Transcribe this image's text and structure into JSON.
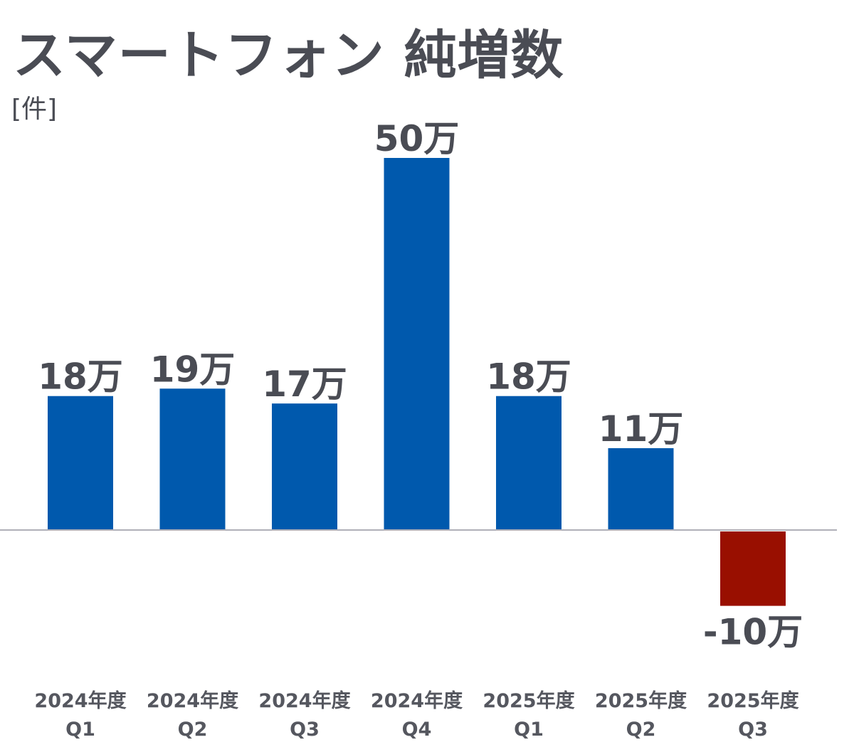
{
  "chart_data": {
    "type": "bar",
    "title": "スマートフォン 純増数",
    "ylabel": "[件]",
    "xlabel": "",
    "categories": [
      [
        "2024年度",
        "Q1"
      ],
      [
        "2024年度",
        "Q2"
      ],
      [
        "2024年度",
        "Q3"
      ],
      [
        "2024年度",
        "Q4"
      ],
      [
        "2025年度",
        "Q1"
      ],
      [
        "2025年度",
        "Q2"
      ],
      [
        "2025年度",
        "Q3"
      ]
    ],
    "values": [
      18,
      19,
      17,
      50,
      18,
      11,
      -10
    ],
    "value_labels": [
      "18万",
      "19万",
      "17万",
      "50万",
      "18万",
      "11万",
      "-10万"
    ],
    "value_unit": "万件",
    "ylim": [
      -10,
      50
    ],
    "grid": false,
    "colors": {
      "positive": "#0059ad",
      "negative": "#990f00",
      "axis": "#b0b0b8",
      "text": "#4a4c54"
    }
  }
}
